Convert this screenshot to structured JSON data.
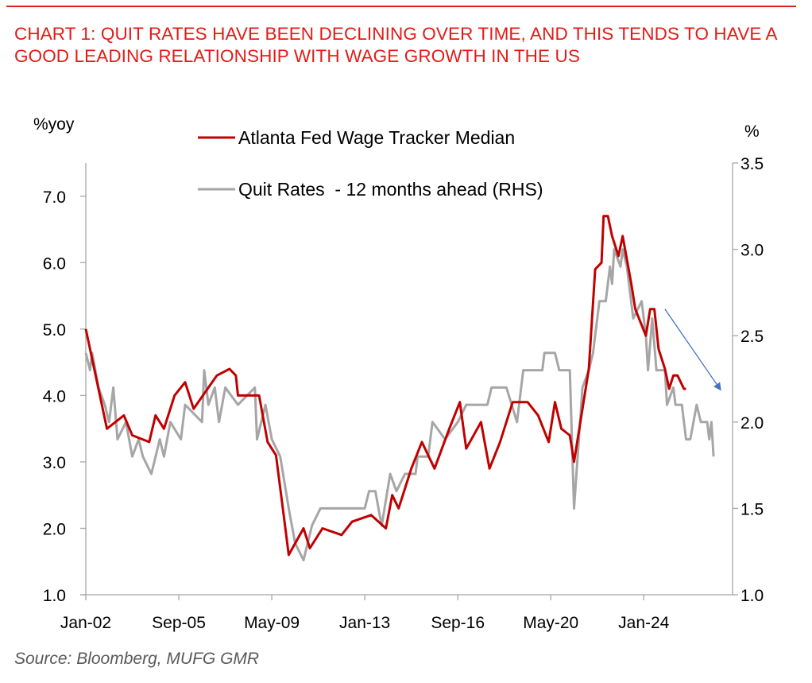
{
  "title": "CHART 1: QUIT RATES HAVE BEEN DECLINING OVER TIME, AND THIS TENDS TO HAVE A GOOD LEADING RELATIONSHIP WITH WAGE GROWTH IN THE US",
  "source": "Source: Bloomberg, MUFG GMR",
  "chart_data": {
    "type": "line",
    "title": "CHART 1: QUIT RATES HAVE BEEN DECLINING OVER TIME, AND THIS TENDS TO HAVE A GOOD LEADING RELATIONSHIP WITH WAGE GROWTH IN THE US",
    "ylabel_left": "%yoy",
    "ylabel_right": "%",
    "ylim_left": [
      1.0,
      7.5
    ],
    "ylim_right": [
      1.0,
      3.5
    ],
    "xlim": [
      "2002-01",
      "2027-07"
    ],
    "yticks_left": [
      "1.0",
      "2.0",
      "3.0",
      "4.0",
      "5.0",
      "6.0",
      "7.0"
    ],
    "yticks_right": [
      "1.0",
      "1.5",
      "2.0",
      "2.5",
      "3.0",
      "3.5"
    ],
    "xticks": [
      {
        "date": "2002-01",
        "label": "Jan-02"
      },
      {
        "date": "2005-09",
        "label": "Sep-05"
      },
      {
        "date": "2009-05",
        "label": "May-09"
      },
      {
        "date": "2013-01",
        "label": "Jan-13"
      },
      {
        "date": "2016-09",
        "label": "Sep-16"
      },
      {
        "date": "2020-05",
        "label": "May-20"
      },
      {
        "date": "2024-01",
        "label": "Jan-24"
      }
    ],
    "grid": false,
    "legend_position": "top-center",
    "annotation": {
      "type": "arrow",
      "direction": "down-right",
      "color": "#4472c4",
      "from": {
        "date": "2024-11",
        "value_left": 5.3
      },
      "to": {
        "date": "2027-01",
        "value_left": 4.1
      }
    },
    "series": [
      {
        "name": "Atlanta Fed Wage Tracker Median",
        "axis": "left",
        "color": "#c00000",
        "points": [
          [
            "2002-01",
            5.0
          ],
          [
            "2002-05",
            4.4
          ],
          [
            "2002-11",
            3.5
          ],
          [
            "2003-07",
            3.7
          ],
          [
            "2003-11",
            3.4
          ],
          [
            "2004-07",
            3.3
          ],
          [
            "2004-10",
            3.7
          ],
          [
            "2005-02",
            3.5
          ],
          [
            "2005-07",
            4.0
          ],
          [
            "2005-12",
            4.2
          ],
          [
            "2006-04",
            3.8
          ],
          [
            "2007-03",
            4.3
          ],
          [
            "2007-09",
            4.4
          ],
          [
            "2007-12",
            4.3
          ],
          [
            "2008-01",
            4.0
          ],
          [
            "2008-11",
            4.0
          ],
          [
            "2009-03",
            3.3
          ],
          [
            "2009-07",
            3.1
          ],
          [
            "2009-11",
            2.1
          ],
          [
            "2010-01",
            1.6
          ],
          [
            "2010-08",
            2.0
          ],
          [
            "2010-11",
            1.7
          ],
          [
            "2011-05",
            2.0
          ],
          [
            "2012-02",
            1.9
          ],
          [
            "2012-07",
            2.1
          ],
          [
            "2013-04",
            2.2
          ],
          [
            "2013-11",
            2.0
          ],
          [
            "2014-02",
            2.5
          ],
          [
            "2014-05",
            2.3
          ],
          [
            "2014-11",
            2.9
          ],
          [
            "2015-04",
            3.3
          ],
          [
            "2015-10",
            2.9
          ],
          [
            "2016-05",
            3.5
          ],
          [
            "2016-10",
            3.9
          ],
          [
            "2017-01",
            3.2
          ],
          [
            "2017-08",
            3.6
          ],
          [
            "2017-12",
            2.9
          ],
          [
            "2018-05",
            3.3
          ],
          [
            "2018-11",
            3.9
          ],
          [
            "2019-06",
            3.9
          ],
          [
            "2019-11",
            3.7
          ],
          [
            "2020-04",
            3.3
          ],
          [
            "2020-07",
            3.9
          ],
          [
            "2020-10",
            3.5
          ],
          [
            "2021-02",
            3.4
          ],
          [
            "2021-04",
            3.0
          ],
          [
            "2021-11",
            4.4
          ],
          [
            "2022-02",
            5.9
          ],
          [
            "2022-05",
            6.0
          ],
          [
            "2022-06",
            6.7
          ],
          [
            "2022-08",
            6.7
          ],
          [
            "2022-10",
            6.4
          ],
          [
            "2023-01",
            6.1
          ],
          [
            "2023-03",
            6.4
          ],
          [
            "2023-07",
            5.7
          ],
          [
            "2023-09",
            5.3
          ],
          [
            "2024-02",
            4.9
          ],
          [
            "2024-04",
            5.3
          ],
          [
            "2024-06",
            5.3
          ],
          [
            "2024-08",
            4.7
          ],
          [
            "2024-11",
            4.4
          ],
          [
            "2025-01",
            4.1
          ],
          [
            "2025-03",
            4.3
          ],
          [
            "2025-05",
            4.3
          ],
          [
            "2025-08",
            4.1
          ],
          [
            "2025-09",
            4.1
          ]
        ]
      },
      {
        "name": "Quit Rates  - 12 months ahead (RHS)",
        "axis": "right",
        "color": "#a6a6a6",
        "points": [
          [
            "2002-01",
            2.4
          ],
          [
            "2002-03",
            2.3
          ],
          [
            "2002-04",
            2.4
          ],
          [
            "2002-07",
            2.2
          ],
          [
            "2002-10",
            2.1
          ],
          [
            "2002-12",
            2.0
          ],
          [
            "2003-02",
            2.2
          ],
          [
            "2003-04",
            1.9
          ],
          [
            "2003-08",
            2.0
          ],
          [
            "2003-11",
            1.8
          ],
          [
            "2004-02",
            1.9
          ],
          [
            "2004-04",
            1.8
          ],
          [
            "2004-08",
            1.7
          ],
          [
            "2004-12",
            1.9
          ],
          [
            "2005-02",
            1.8
          ],
          [
            "2005-05",
            2.0
          ],
          [
            "2005-10",
            1.9
          ],
          [
            "2005-12",
            2.1
          ],
          [
            "2006-08",
            2.0
          ],
          [
            "2006-09",
            2.3
          ],
          [
            "2006-11",
            2.1
          ],
          [
            "2007-02",
            2.2
          ],
          [
            "2007-04",
            2.0
          ],
          [
            "2007-07",
            2.2
          ],
          [
            "2008-01",
            2.1
          ],
          [
            "2008-09",
            2.2
          ],
          [
            "2008-10",
            1.9
          ],
          [
            "2009-02",
            2.1
          ],
          [
            "2009-05",
            1.9
          ],
          [
            "2009-09",
            1.8
          ],
          [
            "2010-01",
            1.5
          ],
          [
            "2010-04",
            1.3
          ],
          [
            "2010-08",
            1.2
          ],
          [
            "2010-12",
            1.4
          ],
          [
            "2011-04",
            1.5
          ],
          [
            "2012-03",
            1.5
          ],
          [
            "2013-01",
            1.5
          ],
          [
            "2013-03",
            1.6
          ],
          [
            "2013-06",
            1.6
          ],
          [
            "2013-09",
            1.4
          ],
          [
            "2014-01",
            1.7
          ],
          [
            "2014-04",
            1.6
          ],
          [
            "2014-08",
            1.7
          ],
          [
            "2015-01",
            1.7
          ],
          [
            "2015-02",
            1.8
          ],
          [
            "2015-07",
            1.8
          ],
          [
            "2015-09",
            2.0
          ],
          [
            "2016-03",
            1.9
          ],
          [
            "2016-09",
            2.0
          ],
          [
            "2017-01",
            2.1
          ],
          [
            "2017-11",
            2.1
          ],
          [
            "2018-01",
            2.2
          ],
          [
            "2018-08",
            2.2
          ],
          [
            "2019-01",
            2.0
          ],
          [
            "2019-04",
            2.3
          ],
          [
            "2020-01",
            2.3
          ],
          [
            "2020-02",
            2.4
          ],
          [
            "2020-07",
            2.4
          ],
          [
            "2020-09",
            2.3
          ],
          [
            "2021-02",
            2.3
          ],
          [
            "2021-04",
            1.5
          ],
          [
            "2021-08",
            2.2
          ],
          [
            "2021-11",
            2.3
          ],
          [
            "2022-01",
            2.4
          ],
          [
            "2022-04",
            2.7
          ],
          [
            "2022-07",
            2.7
          ],
          [
            "2022-09",
            2.9
          ],
          [
            "2022-10",
            2.8
          ],
          [
            "2022-11",
            3.0
          ],
          [
            "2023-02",
            2.9
          ],
          [
            "2023-03",
            3.0
          ],
          [
            "2023-05",
            2.9
          ],
          [
            "2023-08",
            2.6
          ],
          [
            "2023-12",
            2.7
          ],
          [
            "2024-02",
            2.5
          ],
          [
            "2024-03",
            2.3
          ],
          [
            "2024-05",
            2.6
          ],
          [
            "2024-07",
            2.3
          ],
          [
            "2024-11",
            2.3
          ],
          [
            "2024-12",
            2.1
          ],
          [
            "2025-03",
            2.2
          ],
          [
            "2025-04",
            2.1
          ],
          [
            "2025-07",
            2.1
          ],
          [
            "2025-09",
            1.9
          ],
          [
            "2025-11",
            1.9
          ],
          [
            "2026-02",
            2.1
          ],
          [
            "2026-04",
            2.0
          ],
          [
            "2026-07",
            2.0
          ],
          [
            "2026-08",
            1.9
          ],
          [
            "2026-09",
            2.0
          ],
          [
            "2026-10",
            1.8
          ]
        ]
      }
    ]
  }
}
